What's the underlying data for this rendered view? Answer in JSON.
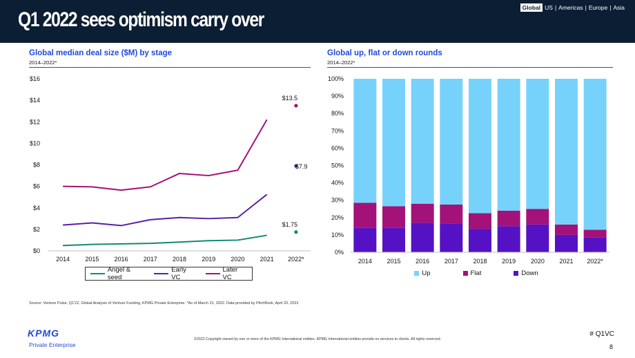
{
  "header": {
    "title": "Q1 2022 sees optimism carry over",
    "regions": [
      "Global",
      "US",
      "Americas",
      "Europe",
      "Asia"
    ],
    "active_region": "Global"
  },
  "colors": {
    "header_bg": "#0c1e33",
    "accent": "#1e49e2",
    "angel": "#0f8a72",
    "early": "#5a1da6",
    "later": "#a31273",
    "up": "#77d2fb",
    "flat": "#a31278",
    "down": "#5412c4"
  },
  "chart_data": [
    {
      "type": "line",
      "title": "Global median deal size ($M) by stage",
      "subtitle": "2014–2022*",
      "categories": [
        "2014",
        "2015",
        "2016",
        "2017",
        "2018",
        "2019",
        "2020",
        "2021",
        "2022*"
      ],
      "ylim": [
        0,
        16
      ],
      "yticks": [
        "$0",
        "$2",
        "$4",
        "$6",
        "$8",
        "$10",
        "$12",
        "$14",
        "$16"
      ],
      "series": [
        {
          "name": "Angel & seed",
          "color": "#0f8a72",
          "values": [
            0.5,
            0.6,
            0.65,
            0.7,
            0.82,
            0.95,
            1.0,
            1.45,
            1.75
          ]
        },
        {
          "name": "Early VC",
          "color": "#5a1da6",
          "values": [
            2.4,
            2.6,
            2.35,
            2.9,
            3.1,
            3.0,
            3.1,
            5.25,
            7.9
          ]
        },
        {
          "name": "Later VC",
          "color": "#a31273",
          "values": [
            6.0,
            5.95,
            5.65,
            5.95,
            7.2,
            7.0,
            7.5,
            12.2,
            13.5
          ]
        }
      ],
      "annotations": [
        {
          "category": "2022*",
          "series": "Later VC",
          "label": "$13.5"
        },
        {
          "category": "2022*",
          "series": "Early VC",
          "label": "$7.9"
        },
        {
          "category": "2022*",
          "series": "Angel & seed",
          "label": "$1.75"
        }
      ],
      "legend_position": "bottom"
    },
    {
      "type": "bar",
      "stacked": true,
      "title": "Global up, flat or down rounds",
      "subtitle": "2014–2022*",
      "categories": [
        "2014",
        "2015",
        "2016",
        "2017",
        "2018",
        "2019",
        "2020",
        "2021",
        "2022*"
      ],
      "ylim": [
        0,
        100
      ],
      "yticks": [
        "0%",
        "10%",
        "20%",
        "30%",
        "40%",
        "50%",
        "60%",
        "70%",
        "80%",
        "90%",
        "100%"
      ],
      "series": [
        {
          "name": "Down",
          "color": "#5412c4",
          "values": [
            14,
            14,
            17,
            16.5,
            13.5,
            15,
            16,
            10,
            8.5
          ]
        },
        {
          "name": "Flat",
          "color": "#a31278",
          "values": [
            14.5,
            12.5,
            11,
            11,
            9,
            9,
            9,
            6,
            4.5
          ]
        },
        {
          "name": "Up",
          "color": "#77d2fb",
          "values": [
            71.5,
            73.5,
            72,
            72.5,
            77.5,
            76,
            75,
            84,
            87
          ]
        }
      ],
      "legend_order": [
        "Up",
        "Flat",
        "Down"
      ],
      "legend_position": "bottom"
    }
  ],
  "footer": {
    "source": "Source: Venture Pulse, Q1'22, Global Analysis of Venture Funding, KPMG Private Enterprise. *As of March 31, 2022. Data provided by PitchBook, April 20, 2022",
    "copyright": "©2022 Copyright owned by one or more of the KPMG International entities. KPMG International entities provide no services to clients. All rights reserved.",
    "logo_text": "KPMG",
    "logo_sub": "Private Enterprise",
    "hashtag": "# Q1VC",
    "page": "8"
  }
}
